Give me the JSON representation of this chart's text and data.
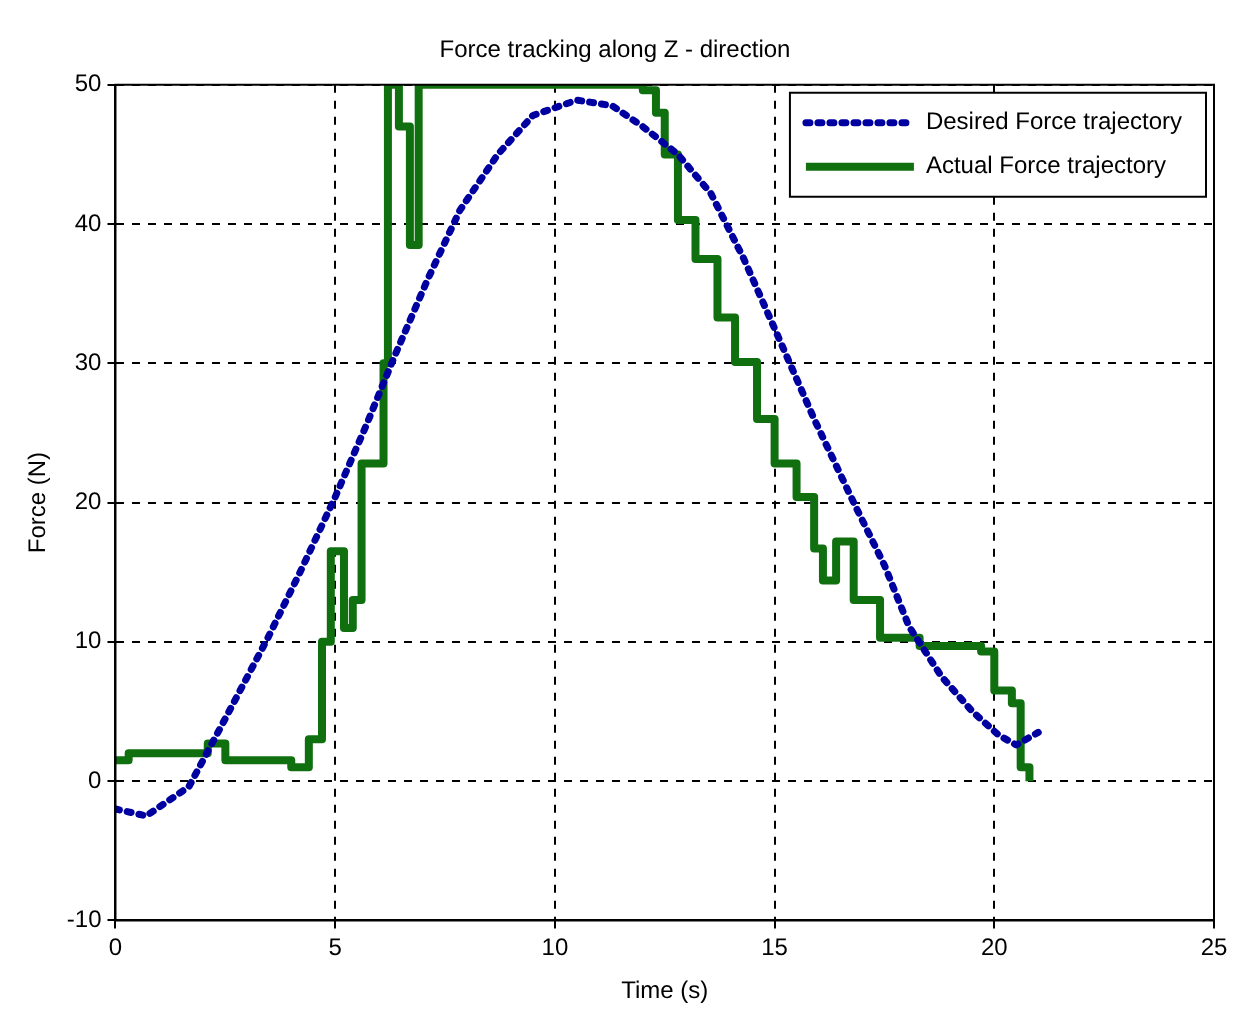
{
  "chart_data": {
    "type": "line",
    "title": "Force tracking along Z - direction",
    "xlabel": "Time (s)",
    "ylabel": "Force (N)",
    "xlim": [
      0,
      25
    ],
    "ylim": [
      -10,
      50
    ],
    "xticks": [
      0,
      5,
      10,
      15,
      20,
      25
    ],
    "yticks": [
      -10,
      0,
      10,
      20,
      30,
      40,
      50
    ],
    "grid": true,
    "legend": "top right",
    "marker": "none",
    "series": [
      {
        "name": "Desired Force trajectory",
        "color": "#0000a0",
        "line_style": "dotted",
        "x": [
          0,
          0.7,
          1.67,
          2.5,
          3.47,
          4.2,
          5.0,
          5.7,
          6.35,
          7.1,
          7.84,
          8.7,
          9.5,
          10.5,
          11.3,
          12.0,
          12.8,
          13.55,
          14.3,
          15.0,
          15.9,
          16.8,
          17.5,
          18.06,
          18.8,
          19.5,
          20.1,
          20.5,
          21
        ],
        "values": [
          -2,
          -2.5,
          -0.4,
          4.5,
          10.3,
          15,
          20.4,
          25.5,
          30.5,
          36,
          41,
          45,
          47.8,
          48.9,
          48.5,
          47,
          45,
          42.2,
          37.5,
          32.5,
          26,
          20,
          15.5,
          11.1,
          7.5,
          5,
          3.3,
          2.6,
          3.5
        ]
      },
      {
        "name": "Actual Force trajectory",
        "type": "step",
        "color": "#107010",
        "line_style": "solid",
        "x": [
          0,
          0.3,
          2.1,
          2.5,
          4.0,
          4.4,
          4.7,
          4.9,
          5.2,
          5.4,
          5.6,
          6.1,
          6.2,
          6.45,
          6.7,
          6.9,
          12.0,
          12.3,
          12.5,
          12.8,
          13.2,
          13.7,
          14.1,
          14.6,
          15.0,
          15.5,
          15.9,
          16.1,
          16.4,
          16.8,
          17.4,
          18.3,
          19.7,
          20.0,
          20.4,
          20.6,
          20.8
        ],
        "values": [
          1.5,
          2,
          2.7,
          1.5,
          1,
          3,
          10,
          16.5,
          11,
          13,
          22.8,
          30,
          50,
          47,
          38.5,
          50,
          49.6,
          48,
          45,
          40.3,
          37.5,
          33.3,
          30.1,
          26,
          22.8,
          20.4,
          16.7,
          14.4,
          17.2,
          13,
          10.3,
          9.7,
          9.3,
          6.5,
          5.6,
          1,
          0
        ]
      }
    ]
  }
}
